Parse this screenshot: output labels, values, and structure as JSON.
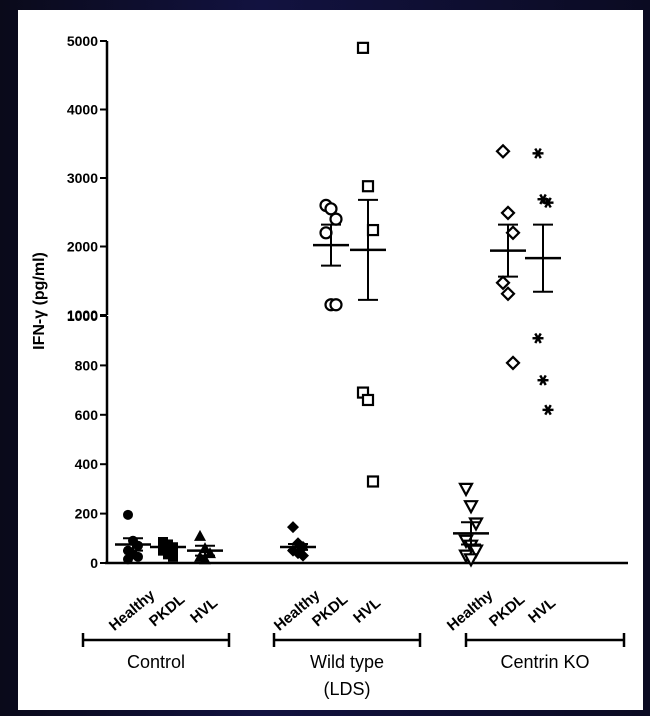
{
  "chart_data": {
    "type": "scatter",
    "ylabel": "IFN-γ (pg/ml)",
    "y_axis_break": true,
    "lower_segment": {
      "ylim": [
        0,
        1000
      ],
      "ticks": [
        "0",
        "200",
        "400",
        "600",
        "800",
        "1000"
      ]
    },
    "upper_segment": {
      "ylim": [
        1000,
        5000
      ],
      "ticks": [
        "1000",
        "2000",
        "3000",
        "4000",
        "5000"
      ]
    },
    "groups": [
      {
        "label": "Control",
        "categories": [
          "Healthy",
          "PKDL",
          "HVL"
        ]
      },
      {
        "label": "Wild type",
        "sublabel": "(LDS)",
        "categories": [
          "Healthy",
          "PKDL",
          "HVL"
        ]
      },
      {
        "label": "Centrin KO",
        "categories": [
          "Healthy",
          "PKDL",
          "HVL"
        ]
      }
    ],
    "series": [
      {
        "group": "Control",
        "category": "Healthy",
        "marker": "filled-circle",
        "values": [
          195,
          90,
          70,
          50,
          35,
          25,
          15
        ],
        "mean": 75,
        "sem": 25
      },
      {
        "group": "Control",
        "category": "PKDL",
        "marker": "filled-square",
        "values": [
          85,
          75,
          60,
          50,
          35,
          25
        ],
        "mean": 65,
        "sem": 15
      },
      {
        "group": "Control",
        "category": "HVL",
        "marker": "filled-triangle",
        "values": [
          110,
          60,
          40,
          25,
          15
        ],
        "mean": 50,
        "sem": 20
      },
      {
        "group": "Wild type",
        "category": "Healthy",
        "marker": "filled-diamond",
        "values": [
          145,
          80,
          65,
          50,
          40,
          30
        ],
        "mean": 65,
        "sem": 12
      },
      {
        "group": "Wild type",
        "category": "PKDL",
        "marker": "open-circle",
        "values": [
          2600,
          2550,
          2400,
          2200,
          1150,
          1150
        ],
        "mean": 2020,
        "sem": 300
      },
      {
        "group": "Wild type",
        "category": "HVL",
        "marker": "open-square",
        "values": [
          4900,
          2880,
          2240,
          690,
          660,
          330
        ],
        "mean": 1950,
        "sem": 730
      },
      {
        "group": "Centrin KO",
        "category": "Healthy",
        "marker": "open-triangle-down",
        "values": [
          300,
          230,
          160,
          90,
          70,
          50,
          30,
          15
        ],
        "mean": 120,
        "sem": 45
      },
      {
        "group": "Centrin KO",
        "category": "PKDL",
        "marker": "open-diamond",
        "values": [
          3390,
          2490,
          2200,
          1470,
          1310,
          810
        ],
        "mean": 1940,
        "sem": 380
      },
      {
        "group": "Centrin KO",
        "category": "HVL",
        "marker": "asterisk",
        "values": [
          3360,
          2690,
          2640,
          910,
          740,
          620
        ],
        "mean": 1830,
        "sem": 490
      }
    ]
  }
}
